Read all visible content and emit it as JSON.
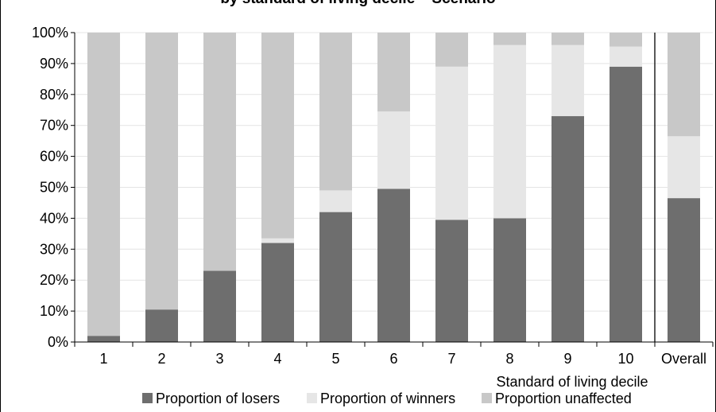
{
  "chart_data": {
    "type": "bar",
    "stacked": true,
    "title": "by standard of living decile – Scenario",
    "xlabel": "Standard of living decile",
    "ylabel": "",
    "ylim": [
      0,
      100
    ],
    "yticks": [
      "0%",
      "10%",
      "20%",
      "30%",
      "40%",
      "50%",
      "60%",
      "70%",
      "80%",
      "90%",
      "100%"
    ],
    "categories": [
      "1",
      "2",
      "3",
      "4",
      "5",
      "6",
      "7",
      "8",
      "9",
      "10",
      "Overall"
    ],
    "series": [
      {
        "name": "Proportion of losers",
        "color": "#6e6e6e",
        "values": [
          2,
          10.5,
          23,
          32,
          42,
          49.5,
          39.5,
          40,
          73,
          89,
          46.5
        ]
      },
      {
        "name": "Proportion of winners",
        "color": "#e6e6e6",
        "values": [
          0,
          0,
          0,
          1.5,
          7,
          25,
          49.5,
          56,
          23,
          6.5,
          20
        ]
      },
      {
        "name": "Proportion unaffected",
        "color": "#c8c8c8",
        "values": [
          98,
          89.5,
          77,
          66.5,
          51,
          25.5,
          11,
          4,
          4,
          4.5,
          33.5
        ]
      }
    ],
    "grid": true,
    "legend": "bottom",
    "separator_before": "Overall"
  }
}
